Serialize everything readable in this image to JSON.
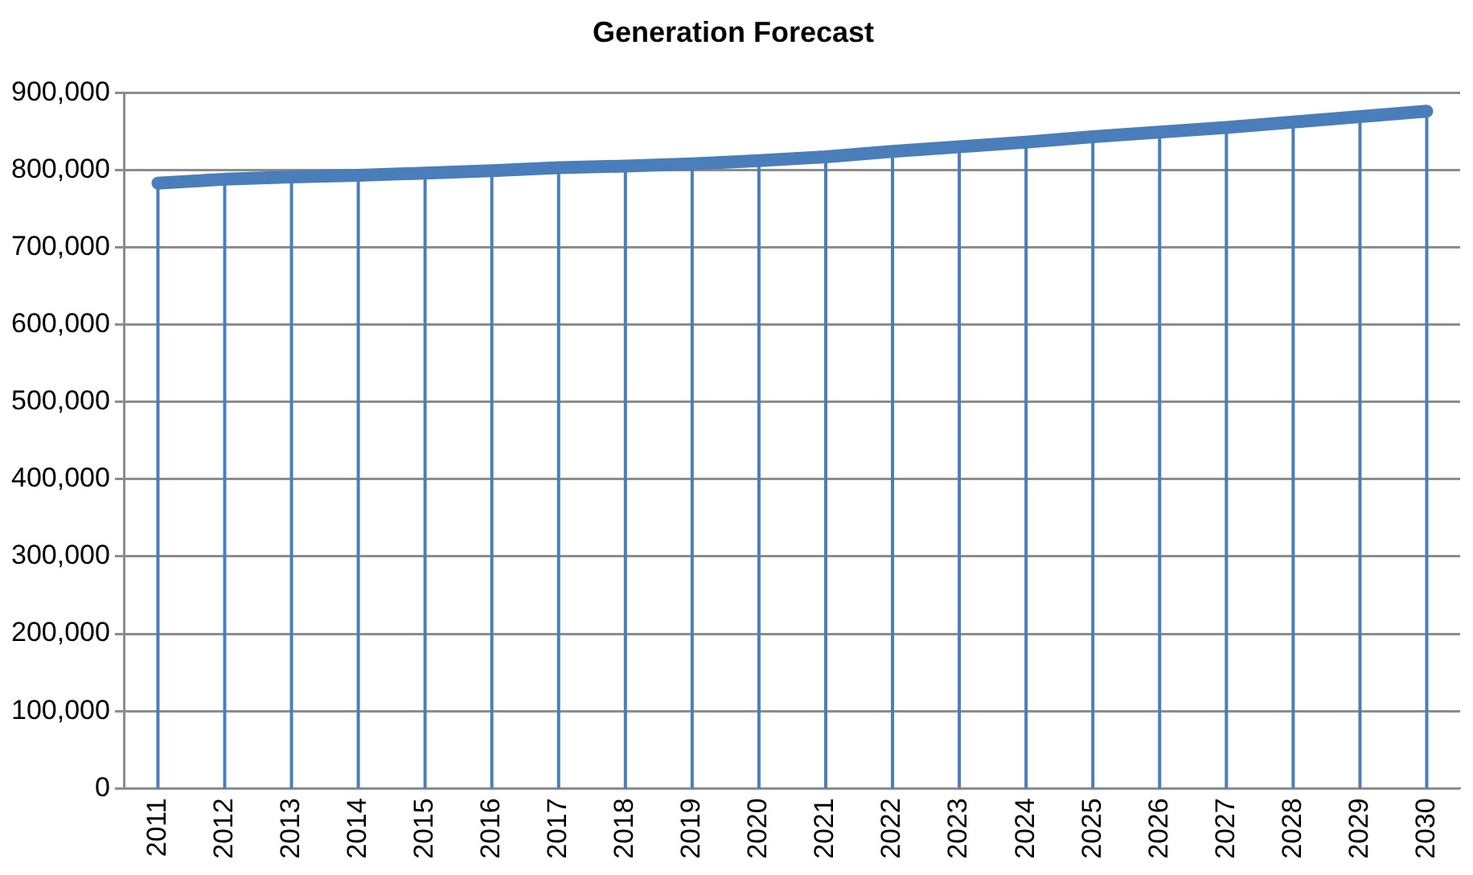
{
  "chart_data": {
    "type": "line",
    "title": "Generation Forecast",
    "categories": [
      "2011",
      "2012",
      "2013",
      "2014",
      "2015",
      "2016",
      "2017",
      "2018",
      "2019",
      "2020",
      "2021",
      "2022",
      "2023",
      "2024",
      "2025",
      "2026",
      "2027",
      "2028",
      "2029",
      "2030"
    ],
    "series": [
      {
        "color": "#4a7ebb",
        "values": [
          783000,
          788000,
          791000,
          793000,
          796000,
          799000,
          803000,
          805000,
          808000,
          812000,
          817000,
          824000,
          830000,
          836000,
          843000,
          849000,
          855000,
          862000,
          869000,
          876000
        ]
      }
    ],
    "ylim": [
      0,
      900000
    ],
    "yticks": [
      {
        "value": 0,
        "label": "0"
      },
      {
        "value": 100000,
        "label": "100,000"
      },
      {
        "value": 200000,
        "label": "200,000"
      },
      {
        "value": 300000,
        "label": "300,000"
      },
      {
        "value": 400000,
        "label": "400,000"
      },
      {
        "value": 500000,
        "label": "500,000"
      },
      {
        "value": 600000,
        "label": "600,000"
      },
      {
        "value": 700000,
        "label": "700,000"
      },
      {
        "value": 800000,
        "label": "800,000"
      },
      {
        "value": 900000,
        "label": "900,000"
      }
    ],
    "grid": true,
    "legend": false,
    "marker": "none",
    "line_style": "solid"
  }
}
